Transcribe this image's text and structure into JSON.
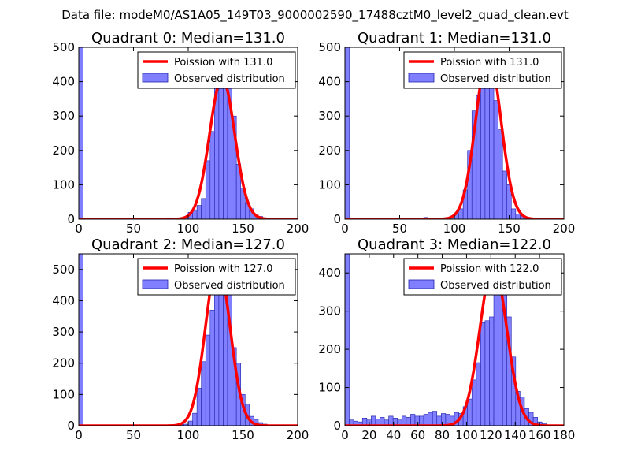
{
  "figure": {
    "suptitle": "Data file: modeM0/AS1A05_149T03_9000002590_17488cztM0_level2_quad_clean.evt"
  },
  "colors": {
    "bar_fill": "#7f7fff",
    "bar_edge": "#2222aa",
    "curve": "#ff0000",
    "axis": "#000000"
  },
  "chart_data": [
    {
      "type": "bar",
      "title": "Quadrant 0: Median=131.0",
      "median": 131.0,
      "xlim": [
        0,
        200
      ],
      "ylim": [
        0,
        500
      ],
      "xticks": [
        0,
        50,
        100,
        150,
        200
      ],
      "yticks": [
        0,
        100,
        200,
        300,
        400,
        500
      ],
      "legend": [
        "Poission with 131.0",
        "Observed distribution"
      ],
      "legend_loc": "upper-right",
      "bins": [
        {
          "x": 0,
          "w": 4,
          "y": 500
        },
        {
          "x": 76,
          "w": 4,
          "y": 2
        },
        {
          "x": 80,
          "w": 4,
          "y": 4
        },
        {
          "x": 88,
          "w": 4,
          "y": 3
        },
        {
          "x": 92,
          "w": 4,
          "y": 2
        },
        {
          "x": 96,
          "w": 4,
          "y": 3
        },
        {
          "x": 100,
          "w": 4,
          "y": 20
        },
        {
          "x": 104,
          "w": 4,
          "y": 27
        },
        {
          "x": 108,
          "w": 4,
          "y": 40
        },
        {
          "x": 112,
          "w": 4,
          "y": 60
        },
        {
          "x": 116,
          "w": 4,
          "y": 170
        },
        {
          "x": 120,
          "w": 4,
          "y": 255
        },
        {
          "x": 124,
          "w": 4,
          "y": 385
        },
        {
          "x": 128,
          "w": 4,
          "y": 380
        },
        {
          "x": 132,
          "w": 4,
          "y": 390
        },
        {
          "x": 136,
          "w": 4,
          "y": 410
        },
        {
          "x": 140,
          "w": 4,
          "y": 300
        },
        {
          "x": 144,
          "w": 4,
          "y": 160
        },
        {
          "x": 148,
          "w": 4,
          "y": 90
        },
        {
          "x": 152,
          "w": 4,
          "y": 45
        },
        {
          "x": 156,
          "w": 4,
          "y": 30
        },
        {
          "x": 160,
          "w": 4,
          "y": 12
        },
        {
          "x": 164,
          "w": 4,
          "y": 8
        },
        {
          "x": 168,
          "w": 4,
          "y": 4
        },
        {
          "x": 172,
          "w": 4,
          "y": 3
        },
        {
          "x": 180,
          "w": 4,
          "y": 2
        },
        {
          "x": 188,
          "w": 4,
          "y": 1
        }
      ]
    },
    {
      "type": "bar",
      "title": "Quadrant 1: Median=131.0",
      "median": 131.0,
      "xlim": [
        0,
        200
      ],
      "ylim": [
        0,
        500
      ],
      "xticks": [
        0,
        50,
        100,
        150,
        200
      ],
      "yticks": [
        0,
        100,
        200,
        300,
        400,
        500
      ],
      "legend": [
        "Poission with 131.0",
        "Observed distribution"
      ],
      "legend_loc": "upper-right",
      "bins": [
        {
          "x": 0,
          "w": 4,
          "y": 500
        },
        {
          "x": 72,
          "w": 4,
          "y": 5
        },
        {
          "x": 76,
          "w": 4,
          "y": 3
        },
        {
          "x": 84,
          "w": 4,
          "y": 3
        },
        {
          "x": 92,
          "w": 4,
          "y": 5
        },
        {
          "x": 96,
          "w": 4,
          "y": 7
        },
        {
          "x": 100,
          "w": 4,
          "y": 15
        },
        {
          "x": 104,
          "w": 4,
          "y": 30
        },
        {
          "x": 108,
          "w": 4,
          "y": 85
        },
        {
          "x": 112,
          "w": 4,
          "y": 200
        },
        {
          "x": 116,
          "w": 4,
          "y": 315
        },
        {
          "x": 120,
          "w": 4,
          "y": 360
        },
        {
          "x": 124,
          "w": 4,
          "y": 445
        },
        {
          "x": 128,
          "w": 4,
          "y": 480
        },
        {
          "x": 132,
          "w": 4,
          "y": 465
        },
        {
          "x": 136,
          "w": 4,
          "y": 345
        },
        {
          "x": 140,
          "w": 4,
          "y": 260
        },
        {
          "x": 144,
          "w": 4,
          "y": 140
        },
        {
          "x": 148,
          "w": 4,
          "y": 100
        },
        {
          "x": 152,
          "w": 4,
          "y": 30
        },
        {
          "x": 156,
          "w": 4,
          "y": 15
        },
        {
          "x": 160,
          "w": 4,
          "y": 10
        },
        {
          "x": 164,
          "w": 4,
          "y": 5
        },
        {
          "x": 168,
          "w": 4,
          "y": 2
        },
        {
          "x": 176,
          "w": 4,
          "y": 1
        }
      ]
    },
    {
      "type": "bar",
      "title": "Quadrant 2: Median=127.0",
      "median": 127.0,
      "xlim": [
        0,
        200
      ],
      "ylim": [
        0,
        550
      ],
      "xticks": [
        0,
        50,
        100,
        150,
        200
      ],
      "yticks": [
        0,
        100,
        200,
        300,
        400,
        500
      ],
      "legend": [
        "Poission with 127.0",
        "Observed distribution"
      ],
      "legend_loc": "upper-right",
      "bins": [
        {
          "x": 0,
          "w": 4,
          "y": 550
        },
        {
          "x": 76,
          "w": 4,
          "y": 3
        },
        {
          "x": 92,
          "w": 4,
          "y": 3
        },
        {
          "x": 96,
          "w": 4,
          "y": 5
        },
        {
          "x": 100,
          "w": 4,
          "y": 15
        },
        {
          "x": 104,
          "w": 4,
          "y": 40
        },
        {
          "x": 108,
          "w": 4,
          "y": 120
        },
        {
          "x": 112,
          "w": 4,
          "y": 205
        },
        {
          "x": 116,
          "w": 4,
          "y": 290
        },
        {
          "x": 120,
          "w": 4,
          "y": 370
        },
        {
          "x": 124,
          "w": 4,
          "y": 420
        },
        {
          "x": 128,
          "w": 4,
          "y": 520
        },
        {
          "x": 132,
          "w": 4,
          "y": 490
        },
        {
          "x": 136,
          "w": 4,
          "y": 420
        },
        {
          "x": 140,
          "w": 4,
          "y": 250
        },
        {
          "x": 144,
          "w": 4,
          "y": 200
        },
        {
          "x": 148,
          "w": 4,
          "y": 100
        },
        {
          "x": 152,
          "w": 4,
          "y": 70
        },
        {
          "x": 156,
          "w": 4,
          "y": 30
        },
        {
          "x": 160,
          "w": 4,
          "y": 20
        },
        {
          "x": 164,
          "w": 4,
          "y": 10
        },
        {
          "x": 168,
          "w": 4,
          "y": 5
        },
        {
          "x": 172,
          "w": 4,
          "y": 3
        }
      ]
    },
    {
      "type": "bar",
      "title": "Quadrant 3: Median=122.0",
      "median": 122.0,
      "xlim": [
        0,
        180
      ],
      "ylim": [
        0,
        450
      ],
      "xticks": [
        0,
        20,
        40,
        60,
        80,
        100,
        120,
        140,
        160,
        180
      ],
      "yticks": [
        0,
        100,
        200,
        300,
        400
      ],
      "legend": [
        "Poission with 122.0",
        "Observed distribution"
      ],
      "legend_loc": "upper-right",
      "bins": [
        {
          "x": 0,
          "w": 3.6,
          "y": 450
        },
        {
          "x": 3.6,
          "w": 3.6,
          "y": 15
        },
        {
          "x": 7.2,
          "w": 3.6,
          "y": 12
        },
        {
          "x": 10.8,
          "w": 3.6,
          "y": 10
        },
        {
          "x": 14.4,
          "w": 3.6,
          "y": 20
        },
        {
          "x": 18,
          "w": 3.6,
          "y": 15
        },
        {
          "x": 21.6,
          "w": 3.6,
          "y": 25
        },
        {
          "x": 25.2,
          "w": 3.6,
          "y": 18
        },
        {
          "x": 28.8,
          "w": 3.6,
          "y": 22
        },
        {
          "x": 32.4,
          "w": 3.6,
          "y": 15
        },
        {
          "x": 36,
          "w": 3.6,
          "y": 25
        },
        {
          "x": 39.6,
          "w": 3.6,
          "y": 20
        },
        {
          "x": 43.2,
          "w": 3.6,
          "y": 15
        },
        {
          "x": 46.8,
          "w": 3.6,
          "y": 25
        },
        {
          "x": 50.4,
          "w": 3.6,
          "y": 22
        },
        {
          "x": 54,
          "w": 3.6,
          "y": 30
        },
        {
          "x": 57.6,
          "w": 3.6,
          "y": 25
        },
        {
          "x": 61.2,
          "w": 3.6,
          "y": 25
        },
        {
          "x": 64.8,
          "w": 3.6,
          "y": 30
        },
        {
          "x": 68.4,
          "w": 3.6,
          "y": 35
        },
        {
          "x": 72,
          "w": 3.6,
          "y": 38
        },
        {
          "x": 75.6,
          "w": 3.6,
          "y": 25
        },
        {
          "x": 79.2,
          "w": 3.6,
          "y": 32
        },
        {
          "x": 82.8,
          "w": 3.6,
          "y": 30
        },
        {
          "x": 86.4,
          "w": 3.6,
          "y": 25
        },
        {
          "x": 90,
          "w": 3.6,
          "y": 35
        },
        {
          "x": 93.6,
          "w": 3.6,
          "y": 32
        },
        {
          "x": 97.2,
          "w": 3.6,
          "y": 50
        },
        {
          "x": 100.8,
          "w": 3.6,
          "y": 70
        },
        {
          "x": 104.4,
          "w": 3.6,
          "y": 120
        },
        {
          "x": 108,
          "w": 3.6,
          "y": 165
        },
        {
          "x": 111.6,
          "w": 3.6,
          "y": 270
        },
        {
          "x": 115.2,
          "w": 3.6,
          "y": 275
        },
        {
          "x": 118.8,
          "w": 3.6,
          "y": 285
        },
        {
          "x": 122.4,
          "w": 3.6,
          "y": 420
        },
        {
          "x": 126,
          "w": 3.6,
          "y": 350
        },
        {
          "x": 129.6,
          "w": 3.6,
          "y": 345
        },
        {
          "x": 133.2,
          "w": 3.6,
          "y": 285
        },
        {
          "x": 136.8,
          "w": 3.6,
          "y": 180
        },
        {
          "x": 140.4,
          "w": 3.6,
          "y": 90
        },
        {
          "x": 144,
          "w": 3.6,
          "y": 75
        },
        {
          "x": 147.6,
          "w": 3.6,
          "y": 45
        },
        {
          "x": 151.2,
          "w": 3.6,
          "y": 35
        },
        {
          "x": 154.8,
          "w": 3.6,
          "y": 22
        },
        {
          "x": 158.4,
          "w": 3.6,
          "y": 10
        },
        {
          "x": 162,
          "w": 3.6,
          "y": 5
        },
        {
          "x": 165.6,
          "w": 3.6,
          "y": 2
        }
      ]
    }
  ]
}
